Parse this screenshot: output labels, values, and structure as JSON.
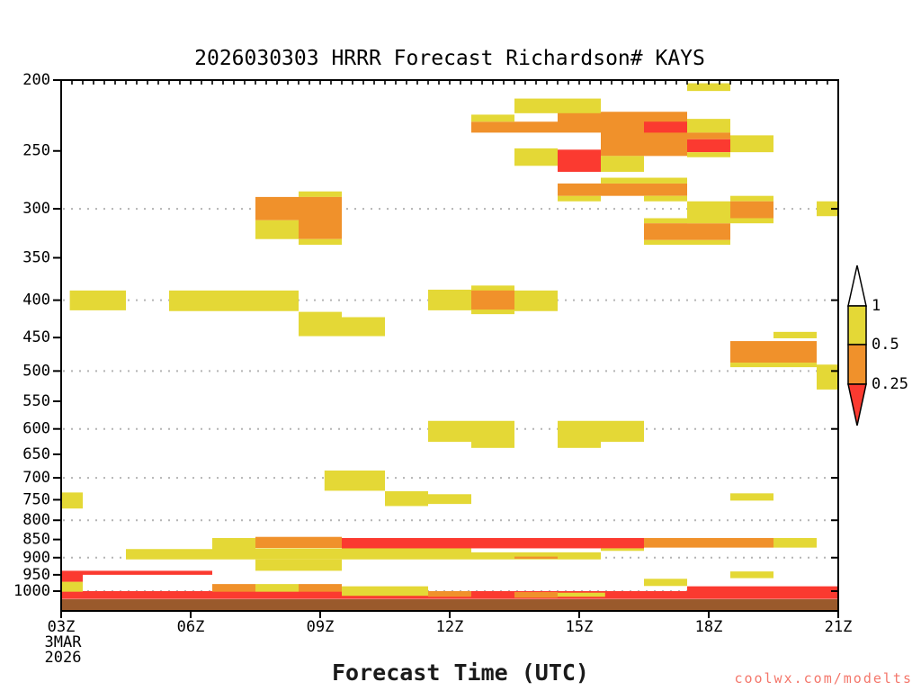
{
  "title": "2026030303 HRRR Forecast Richardson# KAYS",
  "xlabel": "Forecast Time (UTC)",
  "watermark": "coolwx.com/modelts",
  "chart_data": {
    "type": "heatmap",
    "title": "2026030303 HRRR Forecast Richardson# KAYS",
    "xlabel": "Forecast Time (UTC)",
    "x_axis": {
      "range_hours": [
        3,
        21
      ],
      "ticks": [
        {
          "t": 3,
          "label": "03Z"
        },
        {
          "t": 6,
          "label": "06Z"
        },
        {
          "t": 9,
          "label": "09Z"
        },
        {
          "t": 12,
          "label": "12Z"
        },
        {
          "t": 15,
          "label": "15Z"
        },
        {
          "t": 18,
          "label": "18Z"
        },
        {
          "t": 21,
          "label": "21Z"
        }
      ],
      "start_date_lines": [
        "3MAR",
        "2026"
      ]
    },
    "y_axis": {
      "unit": "hPa",
      "scale": "log",
      "range": [
        200,
        1064
      ],
      "ticks": [
        200,
        250,
        300,
        350,
        400,
        450,
        500,
        550,
        600,
        650,
        700,
        750,
        800,
        850,
        900,
        950,
        1000
      ],
      "gridlines": [
        300,
        400,
        500,
        600,
        700,
        800,
        900,
        1000
      ]
    },
    "legend": {
      "labels": [
        "1",
        "0.5",
        "0.25"
      ],
      "meaning": {
        "yellow": "0.5 to 1",
        "orange": "0.25 to 0.5",
        "red": "below 0.25",
        "white": "above 1"
      }
    },
    "colors": {
      "y": "#e4d836",
      "o": "#f0912b",
      "r": "#fb3a30",
      "ground": "#9a5a2c",
      "grid": "#b4b4b4",
      "axis": "#000000",
      "watermark": "#f4776b"
    },
    "blocks": [
      [
        3,
        17.5,
        1000,
        1025,
        "r"
      ],
      [
        17.5,
        21,
        985,
        1025,
        "r"
      ],
      [
        3,
        3.5,
        971,
        1002,
        "y"
      ],
      [
        6.5,
        7.5,
        978,
        1002,
        "o"
      ],
      [
        7.5,
        8.5,
        978,
        1002,
        "y"
      ],
      [
        8.5,
        9.5,
        978,
        1002,
        "o"
      ],
      [
        9.5,
        11.5,
        985,
        1015,
        "y"
      ],
      [
        11.5,
        12.5,
        1000,
        1018,
        "o"
      ],
      [
        13.5,
        14.5,
        1003,
        1021,
        "o"
      ],
      [
        14.5,
        15.6,
        1005,
        1018,
        "y"
      ],
      [
        16.5,
        17.5,
        962,
        984,
        "y"
      ],
      [
        18.5,
        19.5,
        940,
        960,
        "y"
      ],
      [
        3,
        3.5,
        938,
        971,
        "r"
      ],
      [
        3.5,
        6.5,
        938,
        950,
        "r"
      ],
      [
        7.5,
        9.5,
        905,
        938,
        "y"
      ],
      [
        4.5,
        6.5,
        876,
        905,
        "y"
      ],
      [
        6.5,
        9.5,
        874,
        905,
        "y"
      ],
      [
        9.5,
        12.5,
        872,
        905,
        "y"
      ],
      [
        12.5,
        15.5,
        885,
        905,
        "y"
      ],
      [
        13.5,
        14.5,
        897,
        903,
        "o"
      ],
      [
        6.5,
        7.5,
        846,
        876,
        "y"
      ],
      [
        7.5,
        9.5,
        843,
        873,
        "o"
      ],
      [
        9.5,
        16.5,
        846,
        874,
        "r"
      ],
      [
        15.5,
        16.5,
        874,
        881,
        "y"
      ],
      [
        16.5,
        19.5,
        846,
        872,
        "o"
      ],
      [
        19.5,
        20.5,
        846,
        872,
        "y"
      ],
      [
        18.5,
        19.5,
        735,
        752,
        "y"
      ],
      [
        3,
        3.5,
        733,
        771,
        "y"
      ],
      [
        9.1,
        10.5,
        684,
        729,
        "y"
      ],
      [
        10.5,
        11.5,
        730,
        765,
        "y"
      ],
      [
        11.5,
        12.5,
        737,
        760,
        "y"
      ],
      [
        11.5,
        12.5,
        585,
        625,
        "y"
      ],
      [
        12.5,
        13.5,
        585,
        637,
        "y"
      ],
      [
        14.5,
        15.5,
        585,
        637,
        "y"
      ],
      [
        15.5,
        16.5,
        585,
        625,
        "y"
      ],
      [
        20.5,
        21,
        490,
        530,
        "y"
      ],
      [
        19.5,
        20.5,
        442,
        451,
        "y"
      ],
      [
        18.5,
        20.5,
        455,
        487,
        "o"
      ],
      [
        18.5,
        20.5,
        487,
        494,
        "y"
      ],
      [
        3.2,
        4.5,
        388,
        413,
        "y"
      ],
      [
        5.5,
        8.5,
        388,
        414,
        "y"
      ],
      [
        8.5,
        9.5,
        415,
        448,
        "y"
      ],
      [
        9.5,
        10.5,
        422,
        448,
        "y"
      ],
      [
        11.5,
        12.5,
        387,
        413,
        "y"
      ],
      [
        12.5,
        13.5,
        382,
        418,
        "y"
      ],
      [
        12.5,
        13.5,
        388,
        412,
        "o"
      ],
      [
        13.5,
        14.5,
        388,
        414,
        "y"
      ],
      [
        7.5,
        8.5,
        289,
        311,
        "o"
      ],
      [
        7.5,
        8.5,
        311,
        330,
        "y"
      ],
      [
        8.5,
        9.5,
        284,
        289,
        "y"
      ],
      [
        8.5,
        9.5,
        289,
        330,
        "o"
      ],
      [
        8.5,
        9.5,
        330,
        336,
        "y"
      ],
      [
        14.5,
        15.5,
        288,
        293,
        "y"
      ],
      [
        14.5,
        17.5,
        277,
        288,
        "o"
      ],
      [
        15.5,
        17.5,
        272,
        277,
        "y"
      ],
      [
        16.5,
        17.5,
        288,
        293,
        "y"
      ],
      [
        16.5,
        17.5,
        309,
        314,
        "y"
      ],
      [
        16.5,
        18.5,
        314,
        331,
        "o"
      ],
      [
        16.5,
        18.5,
        331,
        336,
        "y"
      ],
      [
        17.5,
        18.5,
        293,
        314,
        "y"
      ],
      [
        18.5,
        19.5,
        288,
        293,
        "y"
      ],
      [
        18.5,
        19.5,
        293,
        309,
        "o"
      ],
      [
        18.5,
        19.5,
        309,
        314,
        "y"
      ],
      [
        20.5,
        21,
        293,
        307,
        "y"
      ],
      [
        13.5,
        14.5,
        248,
        262,
        "y"
      ],
      [
        14.5,
        15.5,
        249,
        267,
        "r"
      ],
      [
        15.5,
        17.5,
        221,
        254,
        "o"
      ],
      [
        15.5,
        16.5,
        254,
        267,
        "y"
      ],
      [
        14.5,
        15.5,
        221,
        236,
        "o"
      ],
      [
        12.5,
        14.5,
        228,
        236,
        "o"
      ],
      [
        12.5,
        13.5,
        223,
        228,
        "y"
      ],
      [
        13.5,
        15.5,
        212,
        222,
        "y"
      ],
      [
        16.5,
        17.5,
        228,
        236,
        "r"
      ],
      [
        17.5,
        18.5,
        202,
        207,
        "y"
      ],
      [
        17.5,
        18.5,
        226,
        236,
        "y"
      ],
      [
        17.5,
        18.5,
        236,
        241,
        "o"
      ],
      [
        17.5,
        18.5,
        241,
        251,
        "r"
      ],
      [
        17.5,
        18.5,
        251,
        255,
        "y"
      ],
      [
        18.5,
        19.5,
        238,
        251,
        "y"
      ]
    ]
  }
}
